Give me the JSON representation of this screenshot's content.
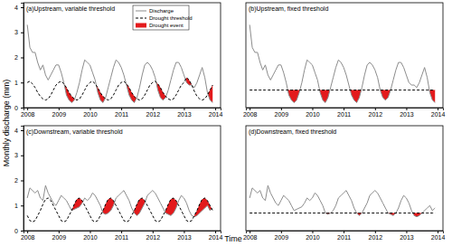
{
  "y_label": "Monthly discharge (mm)",
  "x_label": "Time",
  "chart_data": [
    {
      "type": "line",
      "title": "(a)Upstream, variable threshold",
      "legend": "top-right",
      "xlim": [
        2007.88,
        2014.17
      ],
      "xticks": [
        2008,
        2009,
        2010,
        2011,
        2012,
        2013,
        2014
      ],
      "ylim": [
        0,
        4.18
      ],
      "yticks": [
        0,
        1,
        2,
        3,
        4
      ],
      "x": [
        2008,
        2008.083,
        2008.167,
        2008.25,
        2008.333,
        2008.417,
        2008.5,
        2008.583,
        2008.667,
        2008.75,
        2008.833,
        2008.917,
        2009,
        2009.083,
        2009.167,
        2009.25,
        2009.333,
        2009.417,
        2009.5,
        2009.583,
        2009.667,
        2009.75,
        2009.833,
        2009.917,
        2010,
        2010.083,
        2010.167,
        2010.25,
        2010.333,
        2010.417,
        2010.5,
        2010.583,
        2010.667,
        2010.75,
        2010.833,
        2010.917,
        2011,
        2011.083,
        2011.167,
        2011.25,
        2011.333,
        2011.417,
        2011.5,
        2011.583,
        2011.667,
        2011.75,
        2011.833,
        2011.917,
        2012,
        2012.083,
        2012.167,
        2012.25,
        2012.333,
        2012.417,
        2012.5,
        2012.583,
        2012.667,
        2012.75,
        2012.833,
        2012.917,
        2013,
        2013.083,
        2013.167,
        2013.25,
        2013.333,
        2013.417,
        2013.5,
        2013.583,
        2013.667,
        2013.75,
        2013.833,
        2013.917
      ],
      "series": [
        {
          "name": "Discharge",
          "type": "line",
          "color": "#8c8c8c",
          "line_style": "solid",
          "values": [
            3.3,
            2.4,
            2.2,
            2.2,
            1.8,
            1.5,
            1.7,
            1.3,
            1.1,
            1.3,
            1.5,
            1.7,
            1.7,
            1.4,
            1.0,
            0.5,
            0.3,
            0.2,
            0.3,
            0.6,
            1.0,
            1.5,
            1.9,
            1.8,
            1.7,
            1.4,
            1.1,
            0.6,
            0.3,
            0.2,
            0.4,
            0.8,
            1.2,
            1.6,
            1.9,
            1.8,
            1.6,
            1.3,
            0.9,
            0.5,
            0.3,
            0.2,
            0.4,
            0.8,
            1.3,
            1.7,
            1.8,
            1.7,
            1.5,
            1.2,
            0.7,
            0.4,
            0.3,
            0.4,
            0.7,
            1.1,
            1.5,
            1.8,
            1.8,
            1.6,
            1.3,
            1.0,
            0.9,
            0.9,
            0.8,
            1.0,
            1.3,
            1.6,
            1.2,
            0.6,
            0.3,
            0.2
          ]
        },
        {
          "name": "Drought threshold",
          "type": "line",
          "color": "#000000",
          "line_style": "dashed",
          "values": [
            1.0,
            1.05,
            0.95,
            0.8,
            0.6,
            0.45,
            0.35,
            0.3,
            0.35,
            0.5,
            0.7,
            0.9,
            1.0,
            1.05,
            0.95,
            0.8,
            0.6,
            0.45,
            0.35,
            0.3,
            0.35,
            0.5,
            0.7,
            0.9,
            1.0,
            1.05,
            0.95,
            0.8,
            0.6,
            0.45,
            0.35,
            0.3,
            0.35,
            0.5,
            0.7,
            0.9,
            1.0,
            1.05,
            0.95,
            0.8,
            0.6,
            0.45,
            0.35,
            0.3,
            0.35,
            0.5,
            0.7,
            0.9,
            1.0,
            1.05,
            0.95,
            0.8,
            0.6,
            0.45,
            0.35,
            0.3,
            0.35,
            0.5,
            0.7,
            0.9,
            1.0,
            1.2,
            1.1,
            0.9,
            0.65,
            0.45,
            0.35,
            0.3,
            0.35,
            0.5,
            0.7,
            0.9
          ]
        },
        {
          "name": "Drought event",
          "type": "area",
          "color": "#e31a1c"
        }
      ]
    },
    {
      "type": "line",
      "title": "(b)Upstream, fixed threshold",
      "tick_labels": "x",
      "xlim": [
        2007.88,
        2014.17
      ],
      "xticks": [
        2008,
        2009,
        2010,
        2011,
        2012,
        2013,
        2014
      ],
      "ylim": [
        0,
        4.18
      ],
      "yticks": [
        0,
        1,
        2,
        3,
        4
      ],
      "x": [
        2008,
        2008.083,
        2008.167,
        2008.25,
        2008.333,
        2008.417,
        2008.5,
        2008.583,
        2008.667,
        2008.75,
        2008.833,
        2008.917,
        2009,
        2009.083,
        2009.167,
        2009.25,
        2009.333,
        2009.417,
        2009.5,
        2009.583,
        2009.667,
        2009.75,
        2009.833,
        2009.917,
        2010,
        2010.083,
        2010.167,
        2010.25,
        2010.333,
        2010.417,
        2010.5,
        2010.583,
        2010.667,
        2010.75,
        2010.833,
        2010.917,
        2011,
        2011.083,
        2011.167,
        2011.25,
        2011.333,
        2011.417,
        2011.5,
        2011.583,
        2011.667,
        2011.75,
        2011.833,
        2011.917,
        2012,
        2012.083,
        2012.167,
        2012.25,
        2012.333,
        2012.417,
        2012.5,
        2012.583,
        2012.667,
        2012.75,
        2012.833,
        2012.917,
        2013,
        2013.083,
        2013.167,
        2013.25,
        2013.333,
        2013.417,
        2013.5,
        2013.583,
        2013.667,
        2013.75,
        2013.833,
        2013.917
      ],
      "series": [
        {
          "type": "line",
          "color": "#8c8c8c",
          "line_style": "solid",
          "values": [
            3.3,
            2.4,
            2.2,
            2.2,
            1.8,
            1.5,
            1.7,
            1.3,
            1.1,
            1.3,
            1.5,
            1.7,
            1.7,
            1.4,
            1.0,
            0.5,
            0.3,
            0.2,
            0.3,
            0.6,
            1.0,
            1.5,
            1.9,
            1.8,
            1.7,
            1.4,
            1.1,
            0.6,
            0.3,
            0.2,
            0.4,
            0.8,
            1.2,
            1.6,
            1.9,
            1.8,
            1.6,
            1.3,
            0.9,
            0.5,
            0.3,
            0.2,
            0.4,
            0.8,
            1.3,
            1.7,
            1.8,
            1.7,
            1.5,
            1.2,
            0.7,
            0.4,
            0.3,
            0.4,
            0.7,
            1.1,
            1.5,
            1.8,
            1.8,
            1.6,
            1.3,
            1.0,
            0.9,
            0.9,
            0.8,
            1.0,
            1.3,
            1.6,
            1.2,
            0.6,
            0.3,
            0.2
          ]
        },
        {
          "type": "line",
          "color": "#000000",
          "line_style": "dashed",
          "values": [
            0.7,
            0.7,
            0.7,
            0.7,
            0.7,
            0.7,
            0.7,
            0.7,
            0.7,
            0.7,
            0.7,
            0.7,
            0.7,
            0.7,
            0.7,
            0.7,
            0.7,
            0.7,
            0.7,
            0.7,
            0.7,
            0.7,
            0.7,
            0.7,
            0.7,
            0.7,
            0.7,
            0.7,
            0.7,
            0.7,
            0.7,
            0.7,
            0.7,
            0.7,
            0.7,
            0.7,
            0.7,
            0.7,
            0.7,
            0.7,
            0.7,
            0.7,
            0.7,
            0.7,
            0.7,
            0.7,
            0.7,
            0.7,
            0.7,
            0.7,
            0.7,
            0.7,
            0.7,
            0.7,
            0.7,
            0.7,
            0.7,
            0.7,
            0.7,
            0.7,
            0.7,
            0.7,
            0.7,
            0.7,
            0.7,
            0.7,
            0.7,
            0.7,
            0.7,
            0.7,
            0.7,
            0.7
          ]
        },
        {
          "type": "area",
          "color": "#e31a1c"
        }
      ]
    },
    {
      "type": "line",
      "title": "(c)Downstream, variable threshold",
      "xlim": [
        2007.88,
        2014.17
      ],
      "xticks": [
        2008,
        2009,
        2010,
        2011,
        2012,
        2013,
        2014
      ],
      "ylim": [
        0,
        4.18
      ],
      "yticks": [
        0,
        1,
        2,
        3,
        4
      ],
      "x": [
        2008,
        2008.083,
        2008.167,
        2008.25,
        2008.333,
        2008.417,
        2008.5,
        2008.583,
        2008.667,
        2008.75,
        2008.833,
        2008.917,
        2009,
        2009.083,
        2009.167,
        2009.25,
        2009.333,
        2009.417,
        2009.5,
        2009.583,
        2009.667,
        2009.75,
        2009.833,
        2009.917,
        2010,
        2010.083,
        2010.167,
        2010.25,
        2010.333,
        2010.417,
        2010.5,
        2010.583,
        2010.667,
        2010.75,
        2010.833,
        2010.917,
        2011,
        2011.083,
        2011.167,
        2011.25,
        2011.333,
        2011.417,
        2011.5,
        2011.583,
        2011.667,
        2011.75,
        2011.833,
        2011.917,
        2012,
        2012.083,
        2012.167,
        2012.25,
        2012.333,
        2012.417,
        2012.5,
        2012.583,
        2012.667,
        2012.75,
        2012.833,
        2012.917,
        2013,
        2013.083,
        2013.167,
        2013.25,
        2013.333,
        2013.417,
        2013.5,
        2013.583,
        2013.667,
        2013.75,
        2013.833,
        2013.917
      ],
      "series": [
        {
          "type": "line",
          "color": "#8c8c8c",
          "line_style": "solid",
          "values": [
            1.3,
            1.7,
            1.6,
            1.5,
            1.6,
            1.3,
            1.2,
            1.8,
            1.5,
            1.3,
            1.1,
            1.0,
            1.2,
            1.4,
            1.3,
            1.2,
            1.0,
            0.8,
            0.85,
            0.9,
            0.95,
            1.1,
            1.3,
            1.2,
            1.3,
            1.5,
            1.4,
            1.2,
            1.0,
            0.7,
            0.65,
            0.7,
            0.8,
            1.0,
            1.3,
            1.4,
            1.5,
            1.6,
            1.4,
            1.2,
            0.9,
            0.7,
            0.6,
            0.7,
            0.9,
            1.1,
            1.4,
            1.5,
            1.6,
            1.5,
            1.3,
            1.1,
            0.9,
            0.7,
            0.65,
            0.6,
            0.7,
            0.9,
            1.2,
            1.4,
            1.3,
            1.1,
            0.8,
            0.6,
            0.55,
            0.6,
            0.7,
            0.8,
            0.9,
            1.0,
            0.8,
            0.9
          ]
        },
        {
          "type": "line",
          "color": "#000000",
          "line_style": "dashed",
          "values": [
            0.6,
            0.4,
            0.35,
            0.4,
            0.6,
            0.8,
            1.05,
            1.25,
            1.3,
            1.2,
            1.0,
            0.8,
            0.6,
            0.4,
            0.35,
            0.4,
            0.6,
            0.8,
            1.05,
            1.25,
            1.3,
            1.2,
            1.0,
            0.8,
            0.6,
            0.4,
            0.35,
            0.4,
            0.6,
            0.8,
            1.05,
            1.25,
            1.3,
            1.2,
            1.0,
            0.8,
            0.6,
            0.4,
            0.35,
            0.4,
            0.6,
            0.8,
            1.05,
            1.25,
            1.3,
            1.2,
            1.0,
            0.8,
            0.6,
            0.4,
            0.35,
            0.4,
            0.6,
            0.8,
            1.05,
            1.25,
            1.3,
            1.2,
            1.0,
            0.8,
            0.6,
            0.4,
            0.35,
            0.4,
            0.6,
            0.8,
            1.05,
            1.25,
            1.3,
            1.2,
            1.0,
            0.8
          ]
        },
        {
          "type": "area",
          "color": "#e31a1c"
        }
      ]
    },
    {
      "type": "line",
      "title": "(d)Downstream, fixed threshold",
      "tick_labels": "x",
      "xlim": [
        2007.88,
        2014.17
      ],
      "xticks": [
        2008,
        2009,
        2010,
        2011,
        2012,
        2013,
        2014
      ],
      "ylim": [
        0,
        4.18
      ],
      "yticks": [
        0,
        1,
        2,
        3,
        4
      ],
      "x": [
        2008,
        2008.083,
        2008.167,
        2008.25,
        2008.333,
        2008.417,
        2008.5,
        2008.583,
        2008.667,
        2008.75,
        2008.833,
        2008.917,
        2009,
        2009.083,
        2009.167,
        2009.25,
        2009.333,
        2009.417,
        2009.5,
        2009.583,
        2009.667,
        2009.75,
        2009.833,
        2009.917,
        2010,
        2010.083,
        2010.167,
        2010.25,
        2010.333,
        2010.417,
        2010.5,
        2010.583,
        2010.667,
        2010.75,
        2010.833,
        2010.917,
        2011,
        2011.083,
        2011.167,
        2011.25,
        2011.333,
        2011.417,
        2011.5,
        2011.583,
        2011.667,
        2011.75,
        2011.833,
        2011.917,
        2012,
        2012.083,
        2012.167,
        2012.25,
        2012.333,
        2012.417,
        2012.5,
        2012.583,
        2012.667,
        2012.75,
        2012.833,
        2012.917,
        2013,
        2013.083,
        2013.167,
        2013.25,
        2013.333,
        2013.417,
        2013.5,
        2013.583,
        2013.667,
        2013.75,
        2013.833,
        2013.917
      ],
      "series": [
        {
          "type": "line",
          "color": "#8c8c8c",
          "line_style": "solid",
          "values": [
            1.3,
            1.7,
            1.6,
            1.5,
            1.6,
            1.3,
            1.2,
            1.8,
            1.5,
            1.3,
            1.1,
            1.0,
            1.2,
            1.4,
            1.3,
            1.2,
            1.0,
            0.8,
            0.85,
            0.9,
            0.95,
            1.1,
            1.3,
            1.2,
            1.3,
            1.5,
            1.4,
            1.2,
            1.0,
            0.7,
            0.65,
            0.7,
            0.8,
            1.0,
            1.3,
            1.4,
            1.5,
            1.6,
            1.4,
            1.2,
            0.9,
            0.7,
            0.6,
            0.7,
            0.9,
            1.1,
            1.4,
            1.5,
            1.6,
            1.5,
            1.3,
            1.1,
            0.9,
            0.7,
            0.65,
            0.6,
            0.7,
            0.9,
            1.2,
            1.4,
            1.3,
            1.1,
            0.8,
            0.6,
            0.55,
            0.6,
            0.7,
            0.8,
            0.9,
            1.0,
            0.8,
            0.9
          ]
        },
        {
          "type": "line",
          "color": "#000000",
          "line_style": "dashed",
          "values": [
            0.7,
            0.7,
            0.7,
            0.7,
            0.7,
            0.7,
            0.7,
            0.7,
            0.7,
            0.7,
            0.7,
            0.7,
            0.7,
            0.7,
            0.7,
            0.7,
            0.7,
            0.7,
            0.7,
            0.7,
            0.7,
            0.7,
            0.7,
            0.7,
            0.7,
            0.7,
            0.7,
            0.7,
            0.7,
            0.7,
            0.7,
            0.7,
            0.7,
            0.7,
            0.7,
            0.7,
            0.7,
            0.7,
            0.7,
            0.7,
            0.7,
            0.7,
            0.7,
            0.7,
            0.7,
            0.7,
            0.7,
            0.7,
            0.7,
            0.7,
            0.7,
            0.7,
            0.7,
            0.7,
            0.7,
            0.7,
            0.7,
            0.7,
            0.7,
            0.7,
            0.7,
            0.7,
            0.7,
            0.7,
            0.7,
            0.7,
            0.7,
            0.7,
            0.7,
            0.7,
            0.7,
            0.7
          ]
        },
        {
          "type": "area",
          "color": "#e31a1c"
        }
      ]
    }
  ]
}
